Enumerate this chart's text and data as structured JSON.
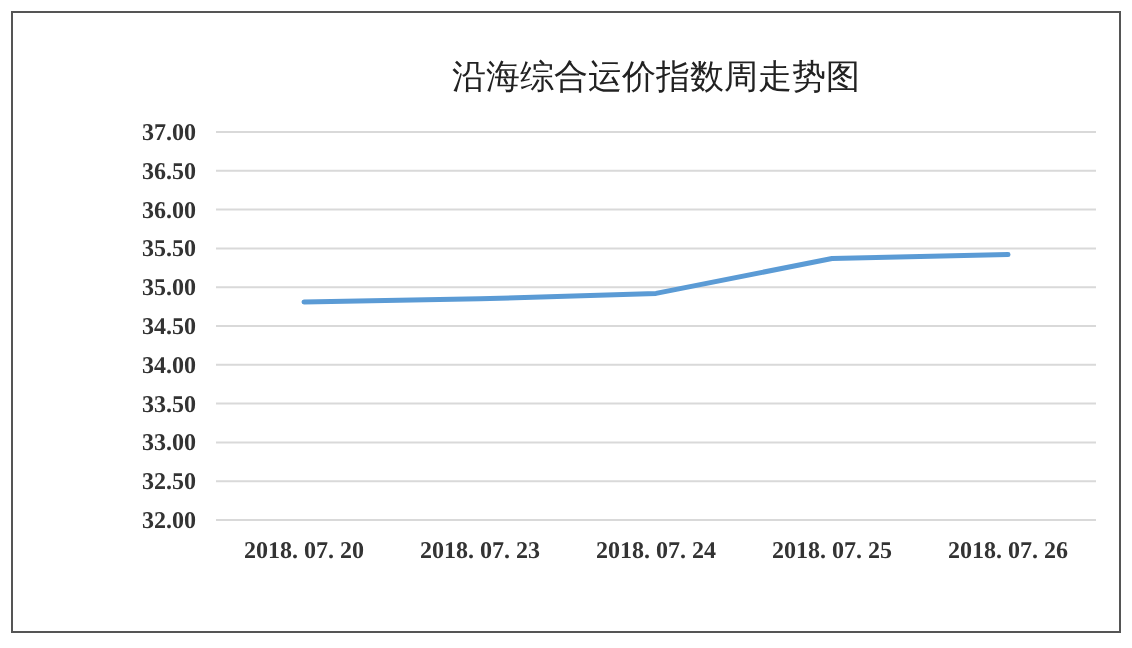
{
  "chart_data": {
    "type": "line",
    "title": "沿海综合运价指数周走势图",
    "categories": [
      "2018. 07. 20",
      "2018. 07. 23",
      "2018. 07. 24",
      "2018. 07. 25",
      "2018. 07. 26"
    ],
    "series": [
      {
        "color": "#5b9bd5",
        "values": [
          34.81,
          34.85,
          34.92,
          35.37,
          35.42
        ]
      }
    ],
    "ylim": [
      32,
      37
    ],
    "yticks": [
      {
        "value": 32,
        "label": "32.00"
      },
      {
        "value": 32.5,
        "label": "32.50"
      },
      {
        "value": 33,
        "label": "33.00"
      },
      {
        "value": 33.5,
        "label": "33.50"
      },
      {
        "value": 34,
        "label": "34.00"
      },
      {
        "value": 34.5,
        "label": "34.50"
      },
      {
        "value": 35,
        "label": "35.00"
      },
      {
        "value": 35.5,
        "label": "35.50"
      },
      {
        "value": 36,
        "label": "36.00"
      },
      {
        "value": 36.5,
        "label": "36.50"
      },
      {
        "value": 37,
        "label": "37.00"
      }
    ],
    "grid": "y",
    "marker": "none",
    "line_style": "solid"
  }
}
